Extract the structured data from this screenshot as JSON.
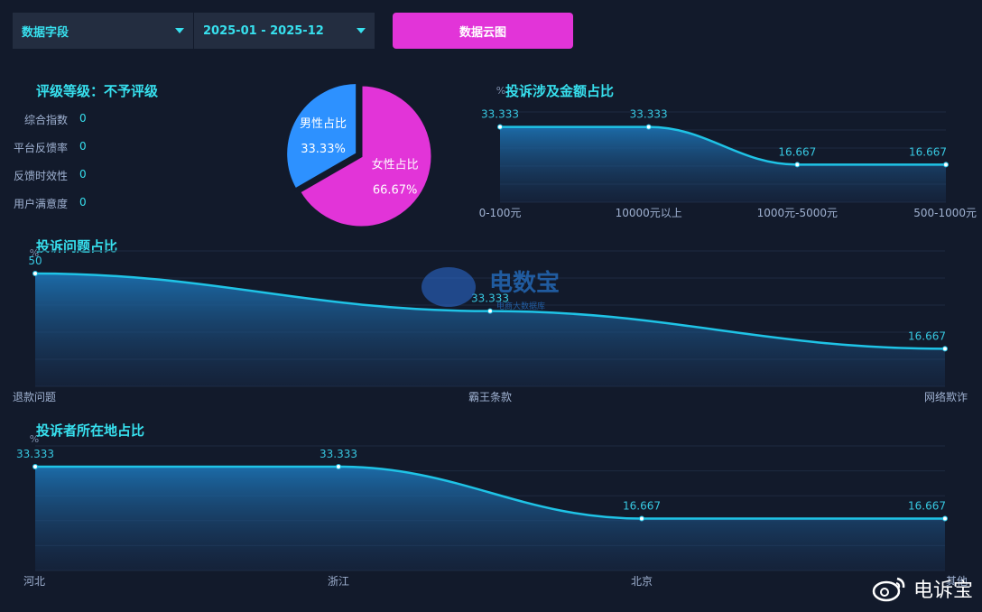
{
  "toolbar": {
    "field_select": "数据字段",
    "date_select": "2025-01 - 2025-12",
    "cloud_button": "数据云图"
  },
  "rating": {
    "title": "评级等级：不予评级",
    "metrics": [
      {
        "label": "综合指数",
        "value": "0"
      },
      {
        "label": "平台反馈率",
        "value": "0"
      },
      {
        "label": "反馈时效性",
        "value": "0"
      },
      {
        "label": "用户满意度",
        "value": "0"
      }
    ]
  },
  "gender_pie": {
    "chart_data": {
      "type": "pie",
      "slices": [
        {
          "label": "男性占比",
          "value": 33.33,
          "display": "33.33%",
          "color": "#2d91ff"
        },
        {
          "label": "女性占比",
          "value": 66.67,
          "display": "66.67%",
          "color": "#e234d8"
        }
      ]
    }
  },
  "amount_chart": {
    "title": "投诉涉及金额占比",
    "unit": "%",
    "chart_data": {
      "type": "area",
      "categories": [
        "0-100元",
        "10000元以上",
        "1000元-5000元",
        "500-1000元"
      ],
      "values": [
        33.333,
        33.333,
        16.667,
        16.667
      ],
      "labels": [
        "33.333",
        "33.333",
        "16.667",
        "16.667"
      ],
      "ylim": [
        0,
        40
      ]
    }
  },
  "issue_chart": {
    "title": "投诉问题占比",
    "unit": "%",
    "chart_data": {
      "type": "area",
      "categories": [
        "退款问题",
        "霸王条款",
        "网络欺诈"
      ],
      "values": [
        50,
        33.333,
        16.667
      ],
      "labels": [
        "50",
        "33.333",
        "16.667"
      ],
      "ylim": [
        0,
        60
      ]
    }
  },
  "location_chart": {
    "title": "投诉者所在地占比",
    "unit": "%",
    "chart_data": {
      "type": "area",
      "categories": [
        "河北",
        "浙江",
        "北京",
        "其他"
      ],
      "values": [
        33.333,
        33.333,
        16.667,
        16.667
      ],
      "labels": [
        "33.333",
        "33.333",
        "16.667",
        "16.667"
      ],
      "ylim": [
        0,
        40
      ]
    }
  },
  "watermark": {
    "text": "电数宝",
    "sub": "电商大数据库"
  },
  "brand": {
    "text": "电诉宝"
  },
  "colors": {
    "accent": "#37e0ee",
    "line": "#1fc3e6",
    "pink": "#e234d8",
    "blue": "#2d91ff"
  }
}
